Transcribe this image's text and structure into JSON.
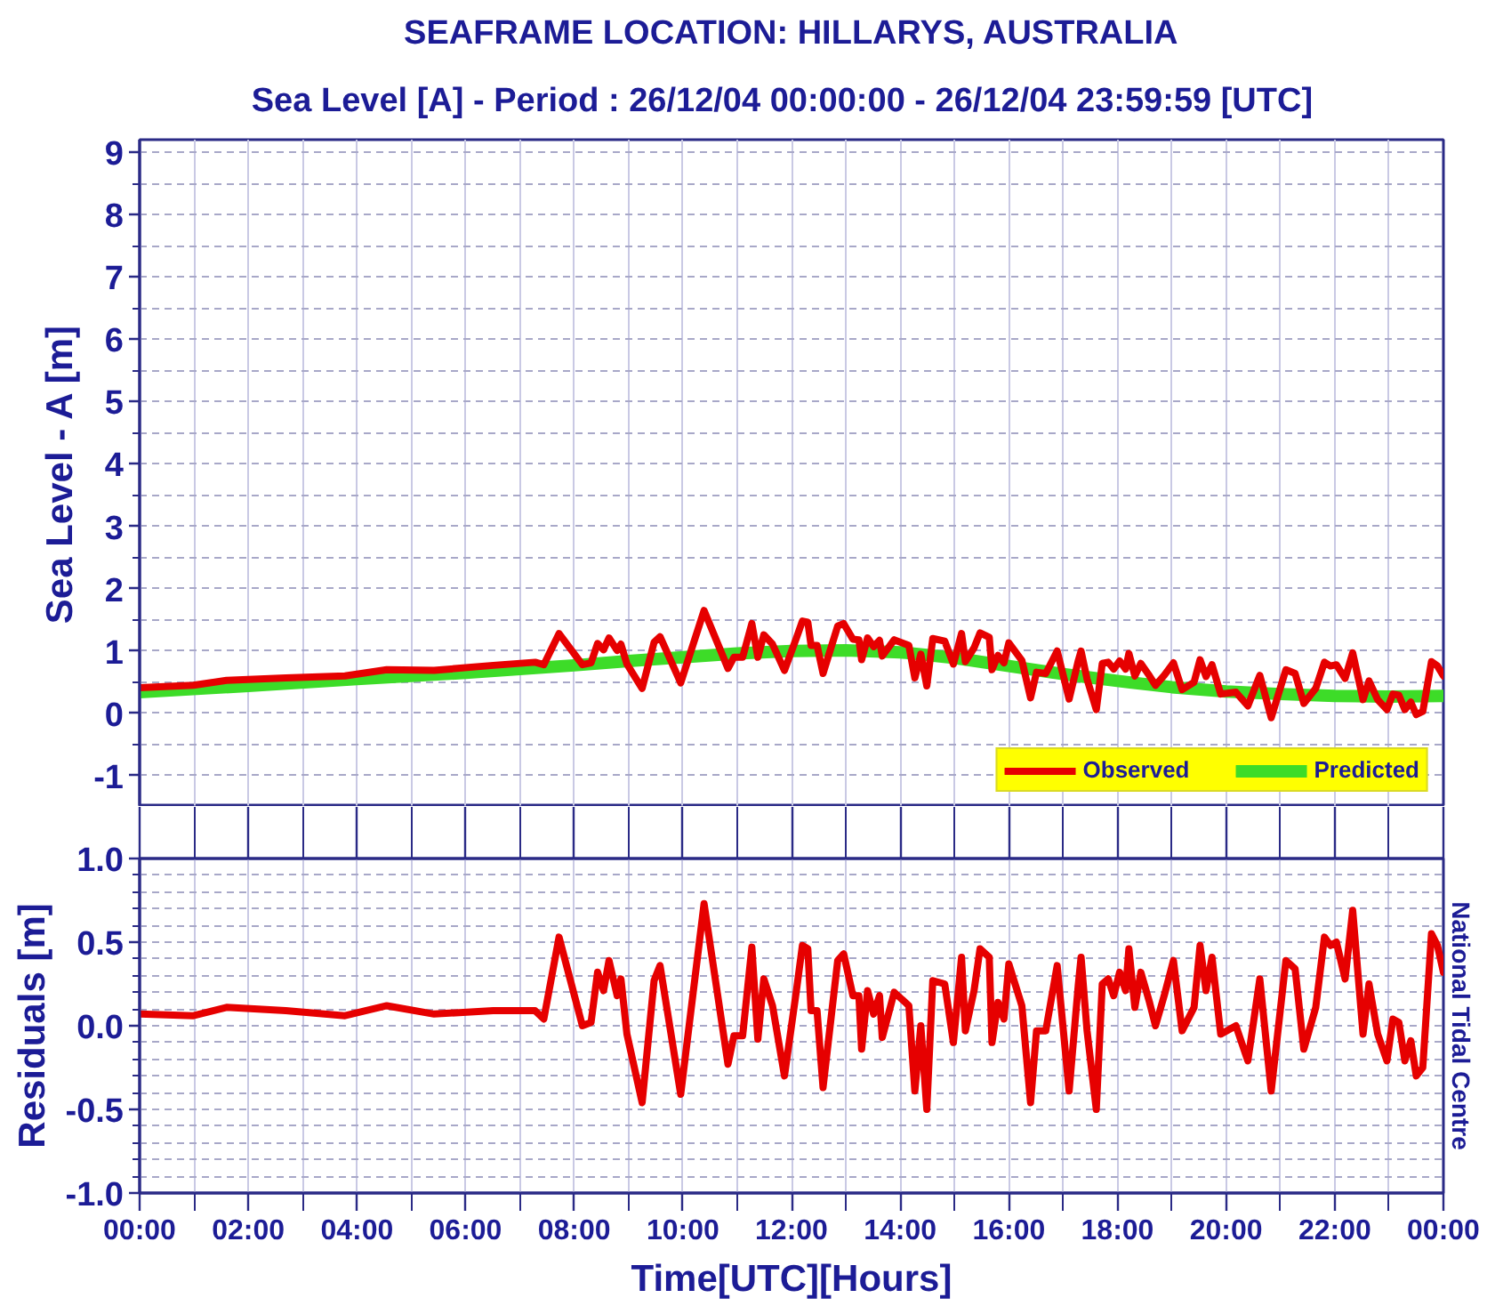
{
  "chart_data": [
    {
      "type": "line",
      "title": "SEAFRAME LOCATION: HILLARYS, AUSTRALIA",
      "subtitle": "Sea Level [A]   - Period : 26/12/04 00:00:00 - 26/12/04 23:59:59 [UTC]",
      "ylabel": "Sea Level - A [m]",
      "xlim": [
        0,
        24
      ],
      "xticks": [
        0,
        1,
        2,
        3,
        4,
        5,
        6,
        7,
        8,
        9,
        10,
        11,
        12,
        13,
        14,
        15,
        16,
        17,
        18,
        19,
        20,
        21,
        22,
        23,
        24
      ],
      "ylim": [
        -1.5,
        9.2
      ],
      "yticks": [
        -1,
        {
          "value": -0.5,
          "label": null
        },
        0,
        {
          "value": 0.5,
          "label": null
        },
        1,
        {
          "value": 1.5,
          "label": null
        },
        2,
        {
          "value": 2.5,
          "label": null
        },
        3,
        {
          "value": 3.5,
          "label": null
        },
        4,
        {
          "value": 4.5,
          "label": null
        },
        5,
        {
          "value": 5.5,
          "label": null
        },
        6,
        {
          "value": 6.5,
          "label": null
        },
        7,
        {
          "value": 7.5,
          "label": null
        },
        8,
        {
          "value": 8.5,
          "label": null
        },
        9
      ],
      "tick_labels": "y",
      "grid": true,
      "legend": "bottom right",
      "series": [
        {
          "name": "Observed",
          "color": "#e60000",
          "x": [
            0,
            0.99,
            1.6,
            2.69,
            3.78,
            4.55,
            5.42,
            6.51,
            7.28,
            7.44,
            7.72,
            8.15,
            8.31,
            8.43,
            8.54,
            8.64,
            8.79,
            8.86,
            8.97,
            9.25,
            9.47,
            9.58,
            9.96,
            10.39,
            10.83,
            10.94,
            11.1,
            11.27,
            11.38,
            11.49,
            11.65,
            11.87,
            12.09,
            12.2,
            12.3,
            12.36,
            12.47,
            12.58,
            12.85,
            12.96,
            13.13,
            13.24,
            13.29,
            13.4,
            13.51,
            13.62,
            13.67,
            13.89,
            14.16,
            14.27,
            14.38,
            14.49,
            14.6,
            14.82,
            14.98,
            15.13,
            15.2,
            15.36,
            15.47,
            15.64,
            15.69,
            15.8,
            15.91,
            16.0,
            16.24,
            16.4,
            16.51,
            16.68,
            16.89,
            17.11,
            17.28,
            17.33,
            17.44,
            17.61,
            17.72,
            17.83,
            17.93,
            18.04,
            18.15,
            18.21,
            18.32,
            18.43,
            18.59,
            18.7,
            18.86,
            19.03,
            19.19,
            19.41,
            19.52,
            19.63,
            19.74,
            19.9,
            20.18,
            20.4,
            20.62,
            20.83,
            21.1,
            21.27,
            21.43,
            21.65,
            21.81,
            21.92,
            22.03,
            22.19,
            22.33,
            22.52,
            22.63,
            22.79,
            22.96,
            23.07,
            23.18,
            23.29,
            23.4,
            23.5,
            23.62,
            23.78,
            23.89,
            24
          ],
          "values": [
            0.41,
            0.45,
            0.53,
            0.57,
            0.6,
            0.7,
            0.69,
            0.77,
            0.82,
            0.78,
            1.28,
            0.78,
            0.81,
            1.12,
            1.02,
            1.21,
            1.01,
            1.11,
            0.79,
            0.4,
            1.14,
            1.23,
            0.49,
            1.65,
            0.72,
            0.9,
            0.9,
            1.44,
            0.9,
            1.26,
            1.11,
            0.69,
            1.21,
            1.48,
            1.46,
            1.09,
            1.09,
            0.64,
            1.4,
            1.44,
            1.19,
            1.18,
            0.86,
            1.21,
            1.07,
            1.17,
            0.92,
            1.18,
            1.09,
            0.57,
            0.95,
            0.44,
            1.2,
            1.16,
            0.79,
            1.28,
            0.83,
            1.05,
            1.29,
            1.22,
            0.7,
            0.93,
            0.81,
            1.13,
            0.85,
            0.25,
            0.66,
            0.64,
            1.0,
            0.23,
            0.85,
            1.0,
            0.55,
            0.06,
            0.8,
            0.82,
            0.71,
            0.84,
            0.71,
            0.96,
            0.6,
            0.8,
            0.6,
            0.45,
            0.61,
            0.81,
            0.38,
            0.5,
            0.86,
            0.59,
            0.78,
            0.31,
            0.34,
            0.12,
            0.61,
            -0.07,
            0.7,
            0.64,
            0.16,
            0.4,
            0.82,
            0.76,
            0.78,
            0.56,
            0.97,
            0.22,
            0.52,
            0.22,
            0.06,
            0.31,
            0.29,
            0.06,
            0.18,
            -0.02,
            0.03,
            0.83,
            0.76,
            0.6
          ]
        },
        {
          "name": "Predicted",
          "color": "#3ddc28",
          "x": [
            0,
            2,
            4,
            6,
            7,
            8,
            9,
            10,
            11,
            12,
            13,
            14,
            15,
            16,
            17,
            18,
            19,
            20,
            21,
            22,
            23,
            24
          ],
          "values": [
            0.34,
            0.44,
            0.55,
            0.65,
            0.71,
            0.77,
            0.84,
            0.9,
            0.96,
            1.0,
            1.01,
            0.98,
            0.89,
            0.76,
            0.63,
            0.52,
            0.42,
            0.35,
            0.31,
            0.28,
            0.27,
            0.28
          ]
        }
      ]
    },
    {
      "type": "line",
      "xlabel": "Time[UTC][Hours]",
      "ylabel": "Residuals [m]",
      "annotations": [
        "National Tidal Centre"
      ],
      "xlim": [
        0,
        24
      ],
      "xticks": [
        {
          "value": 0,
          "label": "00:00"
        },
        {
          "value": 1,
          "label": null
        },
        {
          "value": 2,
          "label": "02:00"
        },
        {
          "value": 3,
          "label": null
        },
        {
          "value": 4,
          "label": "04:00"
        },
        {
          "value": 5,
          "label": null
        },
        {
          "value": 6,
          "label": "06:00"
        },
        {
          "value": 7,
          "label": null
        },
        {
          "value": 8,
          "label": "08:00"
        },
        {
          "value": 9,
          "label": null
        },
        {
          "value": 10,
          "label": "10:00"
        },
        {
          "value": 11,
          "label": null
        },
        {
          "value": 12,
          "label": "12:00"
        },
        {
          "value": 13,
          "label": null
        },
        {
          "value": 14,
          "label": "14:00"
        },
        {
          "value": 15,
          "label": null
        },
        {
          "value": 16,
          "label": "16:00"
        },
        {
          "value": 17,
          "label": null
        },
        {
          "value": 18,
          "label": "18:00"
        },
        {
          "value": 19,
          "label": null
        },
        {
          "value": 20,
          "label": "20:00"
        },
        {
          "value": 21,
          "label": null
        },
        {
          "value": 22,
          "label": "22:00"
        },
        {
          "value": 23,
          "label": null
        },
        {
          "value": 24,
          "label": "00:00"
        }
      ],
      "ylim": [
        -1,
        1
      ],
      "yticks": [
        {
          "value": -1,
          "label": "-1.0"
        },
        {
          "value": -0.9,
          "label": null
        },
        {
          "value": -0.8,
          "label": null
        },
        {
          "value": -0.7,
          "label": null
        },
        {
          "value": -0.6,
          "label": null
        },
        {
          "value": -0.5,
          "label": "-0.5"
        },
        {
          "value": -0.4,
          "label": null
        },
        {
          "value": -0.3,
          "label": null
        },
        {
          "value": -0.2,
          "label": null
        },
        {
          "value": -0.1,
          "label": null
        },
        {
          "value": 0,
          "label": "0.0"
        },
        {
          "value": 0.1,
          "label": null
        },
        {
          "value": 0.2,
          "label": null
        },
        {
          "value": 0.3,
          "label": null
        },
        {
          "value": 0.4,
          "label": null
        },
        {
          "value": 0.5,
          "label": "0.5"
        },
        {
          "value": 0.6,
          "label": null
        },
        {
          "value": 0.7,
          "label": null
        },
        {
          "value": 0.8,
          "label": null
        },
        {
          "value": 0.9,
          "label": null
        },
        {
          "value": 1,
          "label": "1.0"
        }
      ],
      "grid": true,
      "series": [
        {
          "color": "#e60000",
          "x": [
            0,
            0.99,
            1.6,
            2.69,
            3.78,
            4.55,
            5.42,
            6.51,
            7.28,
            7.44,
            7.72,
            8.15,
            8.31,
            8.43,
            8.54,
            8.64,
            8.79,
            8.86,
            8.97,
            9.25,
            9.47,
            9.58,
            9.96,
            10.39,
            10.83,
            10.94,
            11.1,
            11.27,
            11.38,
            11.49,
            11.65,
            11.87,
            12.09,
            12.2,
            12.3,
            12.36,
            12.47,
            12.58,
            12.85,
            12.96,
            13.13,
            13.24,
            13.29,
            13.4,
            13.51,
            13.62,
            13.67,
            13.89,
            14.16,
            14.27,
            14.38,
            14.49,
            14.6,
            14.82,
            14.98,
            15.13,
            15.2,
            15.36,
            15.47,
            15.64,
            15.69,
            15.8,
            15.91,
            16.0,
            16.24,
            16.4,
            16.51,
            16.68,
            16.89,
            17.11,
            17.28,
            17.33,
            17.44,
            17.61,
            17.72,
            17.83,
            17.93,
            18.04,
            18.15,
            18.21,
            18.32,
            18.43,
            18.59,
            18.7,
            18.86,
            19.03,
            19.19,
            19.41,
            19.52,
            19.63,
            19.74,
            19.9,
            20.18,
            20.4,
            20.62,
            20.83,
            21.1,
            21.27,
            21.43,
            21.65,
            21.81,
            21.92,
            22.03,
            22.19,
            22.33,
            22.52,
            22.63,
            22.79,
            22.96,
            23.07,
            23.18,
            23.29,
            23.4,
            23.5,
            23.62,
            23.78,
            23.89,
            24
          ],
          "values": [
            0.07,
            0.06,
            0.11,
            0.09,
            0.06,
            0.12,
            0.07,
            0.09,
            0.09,
            0.04,
            0.53,
            0.0,
            0.02,
            0.32,
            0.21,
            0.39,
            0.18,
            0.28,
            -0.05,
            -0.46,
            0.27,
            0.36,
            -0.41,
            0.73,
            -0.23,
            -0.06,
            -0.06,
            0.47,
            -0.08,
            0.28,
            0.12,
            -0.3,
            0.21,
            0.48,
            0.46,
            0.09,
            0.09,
            -0.37,
            0.39,
            0.43,
            0.18,
            0.18,
            -0.14,
            0.21,
            0.07,
            0.18,
            -0.07,
            0.2,
            0.12,
            -0.39,
            0.0,
            -0.5,
            0.27,
            0.25,
            -0.1,
            0.41,
            -0.03,
            0.21,
            0.46,
            0.41,
            -0.1,
            0.14,
            0.04,
            0.37,
            0.12,
            -0.46,
            -0.03,
            -0.03,
            0.36,
            -0.39,
            0.25,
            0.41,
            -0.03,
            -0.5,
            0.25,
            0.28,
            0.18,
            0.32,
            0.21,
            0.46,
            0.11,
            0.32,
            0.14,
            0.0,
            0.18,
            0.39,
            -0.03,
            0.11,
            0.48,
            0.21,
            0.41,
            -0.05,
            0.0,
            -0.21,
            0.28,
            -0.39,
            0.39,
            0.34,
            -0.14,
            0.11,
            0.53,
            0.48,
            0.5,
            0.28,
            0.69,
            -0.05,
            0.25,
            -0.05,
            -0.21,
            0.04,
            0.02,
            -0.21,
            -0.09,
            -0.3,
            -0.25,
            0.55,
            0.48,
            0.32
          ]
        }
      ]
    }
  ]
}
